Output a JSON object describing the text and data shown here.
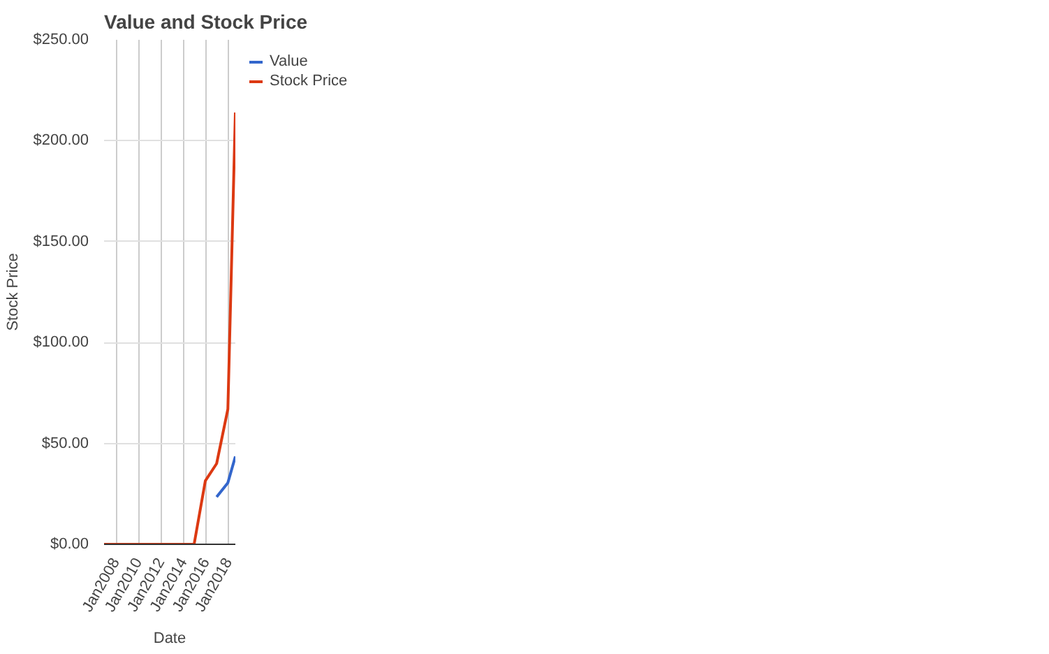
{
  "chart_data": {
    "type": "line",
    "title": "Value and Stock Price",
    "xlabel": "Date",
    "ylabel": "Stock Price",
    "series": [
      {
        "name": "Value",
        "color": "#3366cc",
        "x": [
          "2016-12",
          "2017-12",
          "2018-08"
        ],
        "values": [
          23.5,
          30.5,
          43.5
        ]
      },
      {
        "name": "Stock Price",
        "color": "#dc3912",
        "x": [
          "2006-12",
          "2007-12",
          "2008-12",
          "2009-12",
          "2010-12",
          "2011-12",
          "2012-12",
          "2013-12",
          "2014-12",
          "2015-12",
          "2016-12",
          "2017-12",
          "2018-08"
        ],
        "values": [
          0,
          0,
          0,
          0,
          0,
          0,
          0,
          0,
          0,
          31.5,
          40,
          67,
          214
        ]
      }
    ],
    "xlim": [
      "2006-12",
      "2018-08"
    ],
    "xticks": [
      {
        "value": "2008-01",
        "label": "Jan2008"
      },
      {
        "value": "2010-01",
        "label": "Jan2010"
      },
      {
        "value": "2012-01",
        "label": "Jan2012"
      },
      {
        "value": "2014-01",
        "label": "Jan2014"
      },
      {
        "value": "2016-01",
        "label": "Jan2016"
      },
      {
        "value": "2018-01",
        "label": "Jan2018"
      }
    ],
    "ylim": [
      0,
      250
    ],
    "yticks": [
      {
        "value": 0,
        "label": "$0.00"
      },
      {
        "value": 50,
        "label": "$50.00"
      },
      {
        "value": 100,
        "label": "$100.00"
      },
      {
        "value": 150,
        "label": "$150.00"
      },
      {
        "value": 200,
        "label": "$200.00"
      },
      {
        "value": 250,
        "label": "$250.00"
      }
    ],
    "grid": true,
    "legend": "top right"
  }
}
